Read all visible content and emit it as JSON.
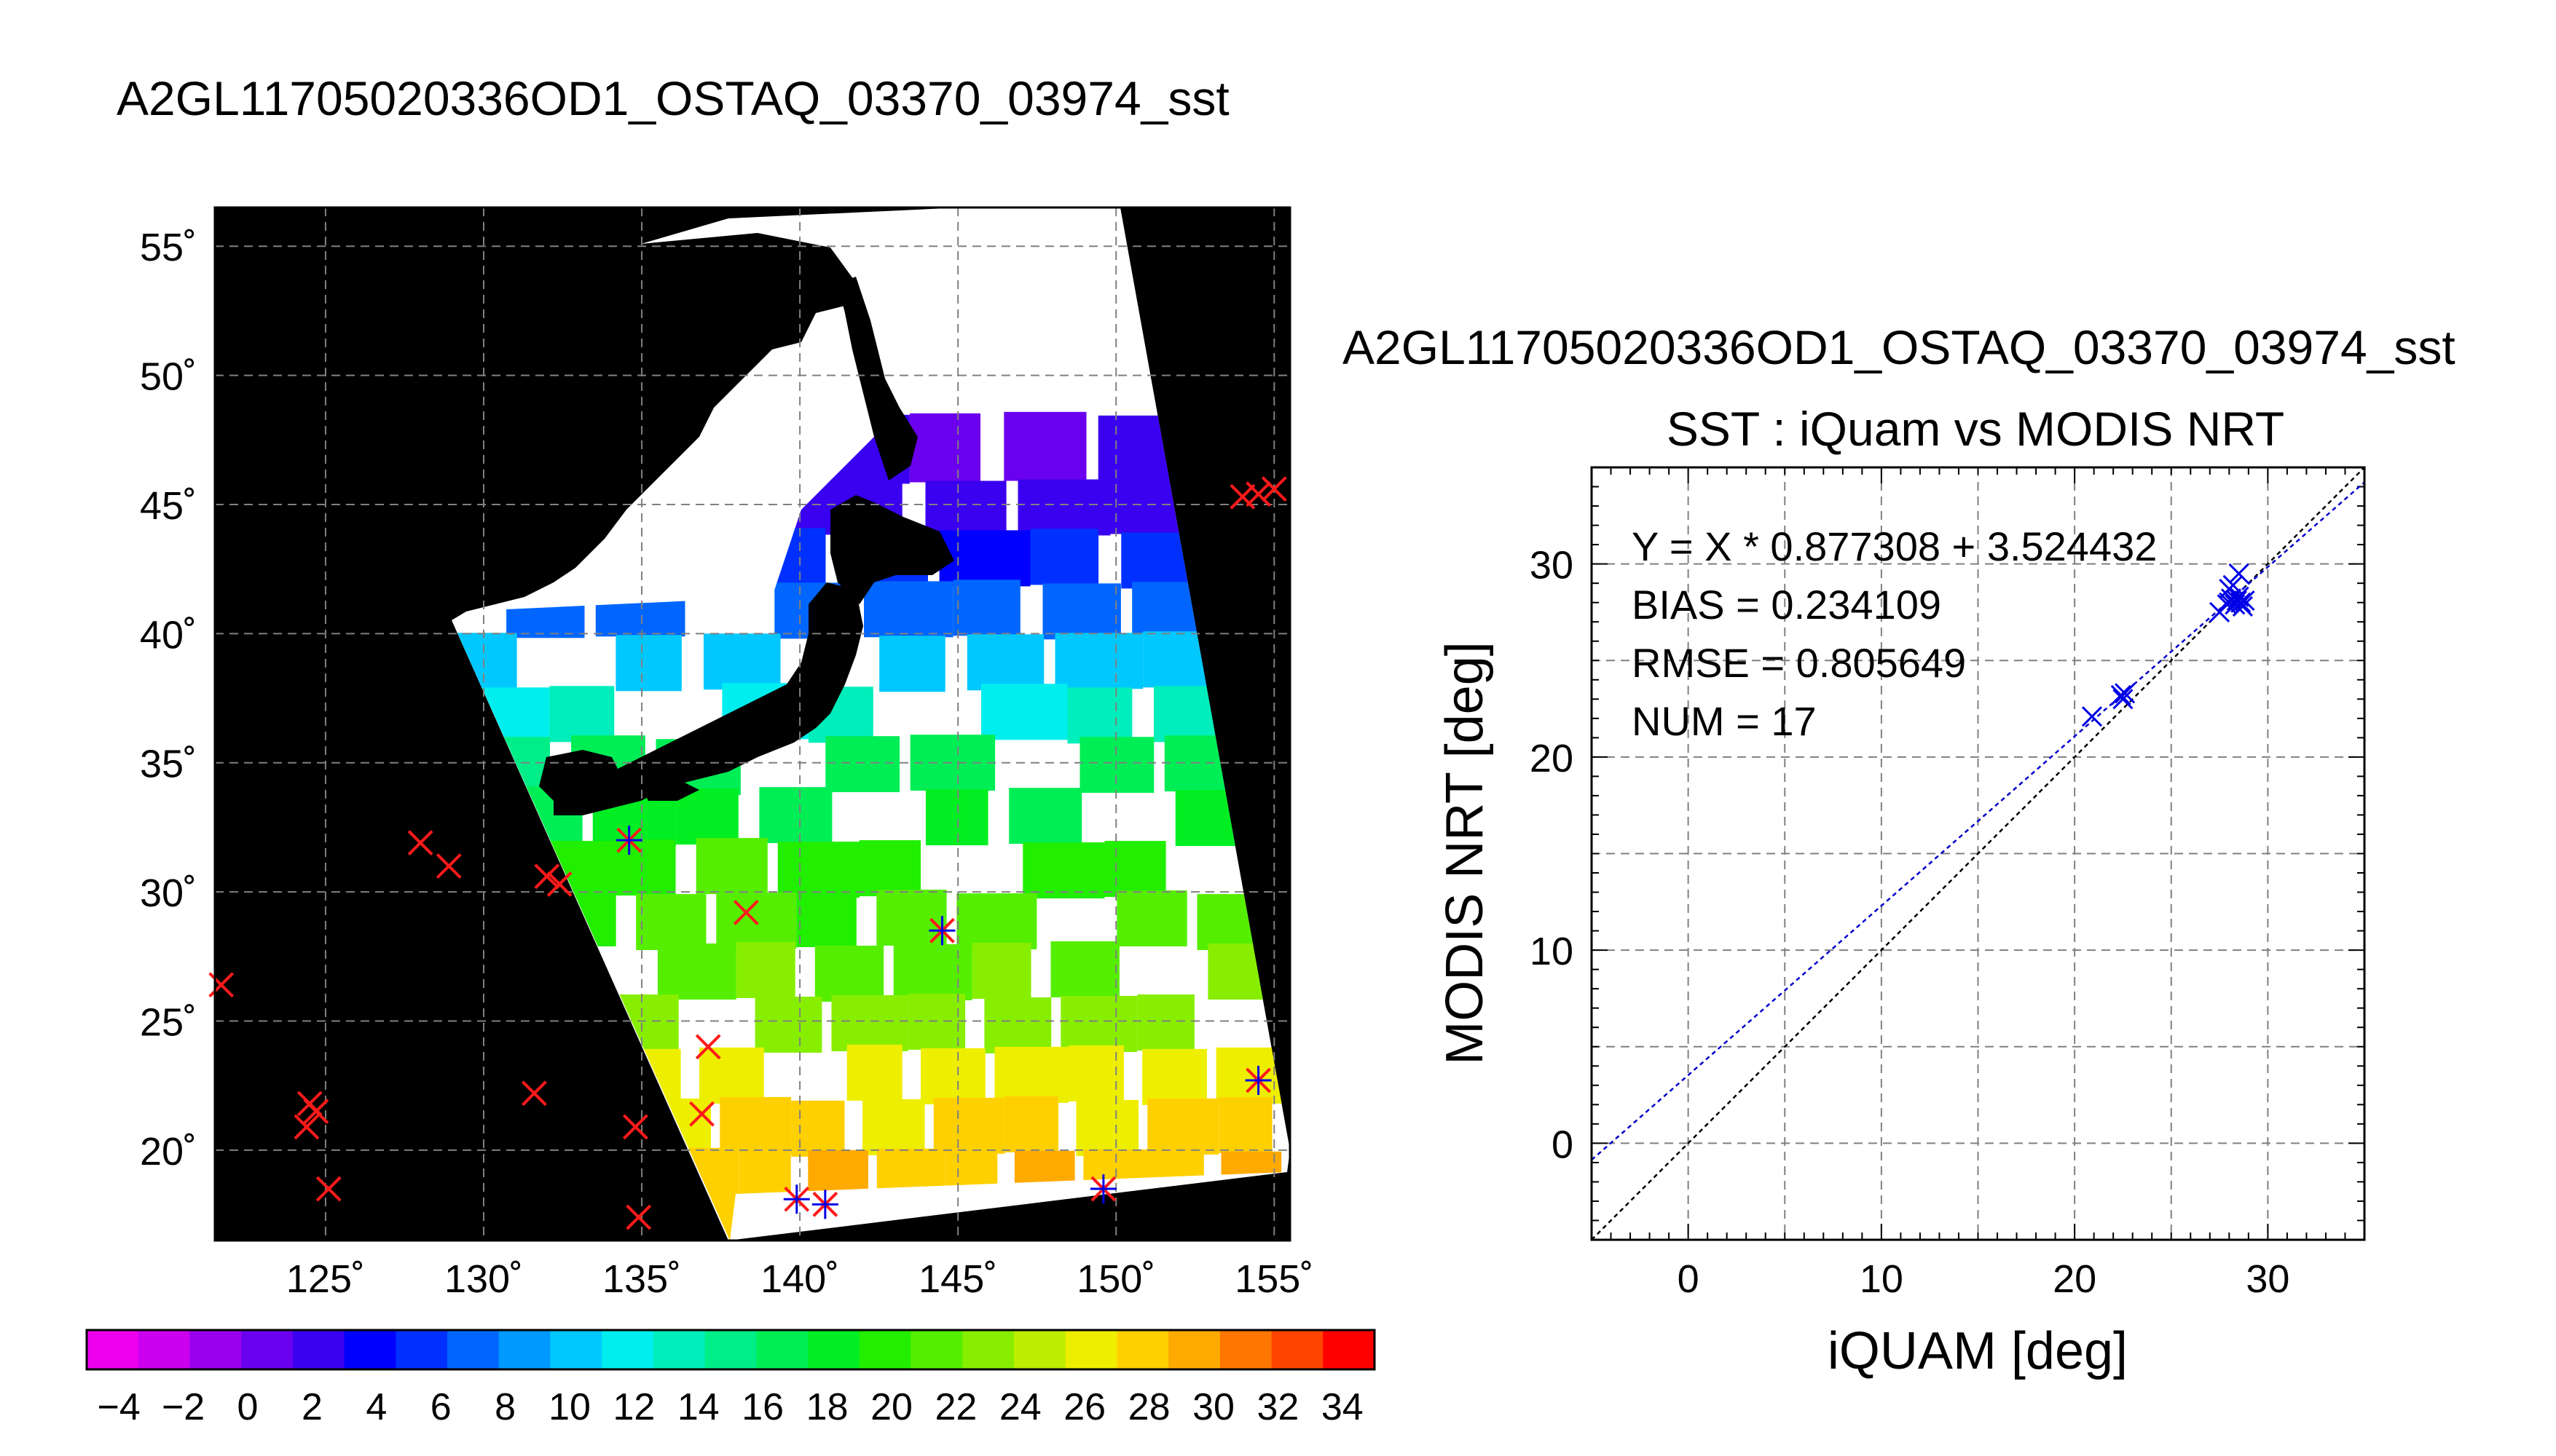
{
  "figure": {
    "map_title": "A2GL11705020336OD1_OSTAQ_03370_03974_sst",
    "scatter_filename": "A2GL11705020336OD1_OSTAQ_03370_03974_sst",
    "scatter_title": "SST : iQuam vs MODIS NRT"
  },
  "colors": {
    "text": "#000000",
    "grid": "#808080",
    "land": "#000000",
    "no_data": "#ffffff",
    "marker_red": "#ff1a1a",
    "marker_blue": "#0000e6",
    "fit_line": "#0000cc",
    "identity_line": "#000000"
  },
  "chart_data": [
    {
      "type": "heatmap",
      "title": "A2GL11705020336OD1_OSTAQ_03370_03974_sst",
      "xlim": [
        121.5,
        155.5
      ],
      "ylim": [
        16.5,
        56.5
      ],
      "xticks": [
        125,
        130,
        135,
        140,
        145,
        150,
        155
      ],
      "yticks": [
        20,
        25,
        30,
        35,
        40,
        45,
        50,
        55
      ],
      "xtick_labels": [
        "125˚",
        "130˚",
        "135˚",
        "140˚",
        "145˚",
        "150˚",
        "155˚"
      ],
      "ytick_labels": [
        "20˚",
        "25˚",
        "30˚",
        "35˚",
        "40˚",
        "45˚",
        "50˚",
        "55˚"
      ],
      "grid": true,
      "colorbar": {
        "range": [
          -5,
          35
        ],
        "labels": [
          "−4",
          "−2",
          "0",
          "2",
          "4",
          "6",
          "8",
          "10",
          "12",
          "14",
          "16",
          "18",
          "20",
          "22",
          "24",
          "26",
          "28",
          "30",
          "32",
          "34"
        ],
        "label_values": [
          -4,
          -2,
          0,
          2,
          4,
          6,
          8,
          10,
          12,
          14,
          16,
          18,
          20,
          22,
          24,
          26,
          28,
          30,
          32,
          34
        ],
        "segment_colors": [
          "#ee00ee",
          "#cc00ee",
          "#9a00ee",
          "#6a00ee",
          "#3a00f0",
          "#0000ff",
          "#0030ff",
          "#0066ff",
          "#0099ff",
          "#00c8ff",
          "#00eeee",
          "#00eebb",
          "#00ee88",
          "#00ee55",
          "#00ee22",
          "#22ee00",
          "#55ee00",
          "#88ee00",
          "#bbee00",
          "#eeee00",
          "#ffd000",
          "#ffaa00",
          "#ff7700",
          "#ff4400",
          "#ff0000"
        ]
      },
      "swath_sst": [
        {
          "lat": 47.0,
          "sst": 1
        },
        {
          "lat": 45.0,
          "sst": 2
        },
        {
          "lat": 43.0,
          "sst": 5
        },
        {
          "lat": 41.0,
          "sst": 7
        },
        {
          "lat": 39.0,
          "sst": 10
        },
        {
          "lat": 37.0,
          "sst": 13
        },
        {
          "lat": 35.0,
          "sst": 16
        },
        {
          "lat": 33.0,
          "sst": 18
        },
        {
          "lat": 31.0,
          "sst": 20
        },
        {
          "lat": 29.0,
          "sst": 21
        },
        {
          "lat": 27.0,
          "sst": 22
        },
        {
          "lat": 25.0,
          "sst": 23
        },
        {
          "lat": 23.0,
          "sst": 26
        },
        {
          "lat": 21.0,
          "sst": 27
        },
        {
          "lat": 19.0,
          "sst": 28
        },
        {
          "lat": 17.5,
          "sst": 29
        }
      ],
      "markers_unmatched": [
        {
          "lon": 121.7,
          "lat": 26.4
        },
        {
          "lon": 124.5,
          "lat": 21.8
        },
        {
          "lon": 124.7,
          "lat": 21.5
        },
        {
          "lon": 124.4,
          "lat": 20.9
        },
        {
          "lon": 125.1,
          "lat": 18.5
        },
        {
          "lon": 128.0,
          "lat": 31.9
        },
        {
          "lon": 128.9,
          "lat": 31.0
        },
        {
          "lon": 132.0,
          "lat": 30.6
        },
        {
          "lon": 132.4,
          "lat": 30.3
        },
        {
          "lon": 131.6,
          "lat": 22.2
        },
        {
          "lon": 134.8,
          "lat": 20.9
        },
        {
          "lon": 134.9,
          "lat": 17.4
        },
        {
          "lon": 137.1,
          "lat": 24.0
        },
        {
          "lon": 136.9,
          "lat": 21.4
        },
        {
          "lon": 138.3,
          "lat": 29.2
        },
        {
          "lon": 154.0,
          "lat": 45.3
        },
        {
          "lon": 154.5,
          "lat": 45.4
        },
        {
          "lon": 155.0,
          "lat": 45.6
        }
      ],
      "markers_matched": [
        {
          "lon": 134.6,
          "lat": 32.0
        },
        {
          "lon": 144.5,
          "lat": 28.5
        },
        {
          "lon": 154.5,
          "lat": 22.7
        },
        {
          "lon": 139.9,
          "lat": 18.1
        },
        {
          "lon": 140.8,
          "lat": 17.9
        },
        {
          "lon": 149.6,
          "lat": 18.5
        }
      ]
    },
    {
      "type": "scatter",
      "title": "SST : iQuam vs MODIS NRT",
      "xlabel": "iQUAM [deg]",
      "ylabel": "MODIS NRT [deg]",
      "xlim": [
        -5,
        35
      ],
      "ylim": [
        -5,
        35
      ],
      "xticks": [
        0,
        10,
        20,
        30
      ],
      "yticks": [
        0,
        10,
        20,
        30
      ],
      "tick_labels": [
        "0",
        "10",
        "20",
        "30"
      ],
      "grid": true,
      "annotations": [
        "Y = X * 0.877308 + 3.524432",
        "BIAS = 0.234109",
        "RMSE = 0.805649",
        "NUM = 17"
      ],
      "fit": {
        "slope": 0.877308,
        "intercept": 3.524432
      },
      "points": [
        [
          20.9,
          22.1
        ],
        [
          22.4,
          23.2
        ],
        [
          22.6,
          23.3
        ],
        [
          22.5,
          23.0
        ],
        [
          27.5,
          27.5
        ],
        [
          27.9,
          27.9
        ],
        [
          28.0,
          28.7
        ],
        [
          28.1,
          28.2
        ],
        [
          28.3,
          27.9
        ],
        [
          28.4,
          28.1
        ],
        [
          28.6,
          28.0
        ],
        [
          28.7,
          27.8
        ],
        [
          28.2,
          28.9
        ],
        [
          28.5,
          29.5
        ],
        [
          28.8,
          28.1
        ],
        [
          28.0,
          28.0
        ],
        [
          28.5,
          28.3
        ]
      ]
    }
  ]
}
